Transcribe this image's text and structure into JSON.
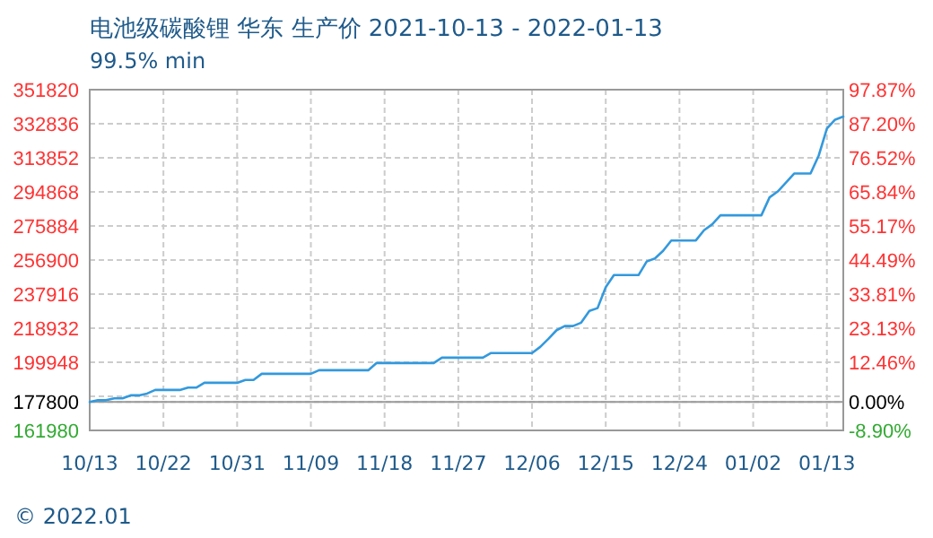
{
  "chart_data": {
    "type": "line",
    "title": "电池级碳酸锂 华东 生产价 2021-10-13 - 2022-01-13",
    "subtitle": "99.5% min",
    "x": [
      "2021-10-13",
      "2021-10-14",
      "2021-10-15",
      "2021-10-16",
      "2021-10-17",
      "2021-10-18",
      "2021-10-19",
      "2021-10-20",
      "2021-10-21",
      "2021-10-22",
      "2021-10-23",
      "2021-10-24",
      "2021-10-25",
      "2021-10-26",
      "2021-10-27",
      "2021-10-28",
      "2021-10-29",
      "2021-10-30",
      "2021-10-31",
      "2021-11-01",
      "2021-11-02",
      "2021-11-03",
      "2021-11-04",
      "2021-11-05",
      "2021-11-06",
      "2021-11-07",
      "2021-11-08",
      "2021-11-09",
      "2021-11-10",
      "2021-11-11",
      "2021-11-12",
      "2021-11-13",
      "2021-11-14",
      "2021-11-15",
      "2021-11-16",
      "2021-11-17",
      "2021-11-18",
      "2021-11-19",
      "2021-11-20",
      "2021-11-21",
      "2021-11-22",
      "2021-11-23",
      "2021-11-24",
      "2021-11-25",
      "2021-11-26",
      "2021-11-27",
      "2021-11-28",
      "2021-11-29",
      "2021-11-30",
      "2021-12-01",
      "2021-12-02",
      "2021-12-03",
      "2021-12-04",
      "2021-12-05",
      "2021-12-06",
      "2021-12-07",
      "2021-12-08",
      "2021-12-09",
      "2021-12-10",
      "2021-12-11",
      "2021-12-12",
      "2021-12-13",
      "2021-12-14",
      "2021-12-15",
      "2021-12-16",
      "2021-12-17",
      "2021-12-18",
      "2021-12-19",
      "2021-12-20",
      "2021-12-21",
      "2021-12-22",
      "2021-12-23",
      "2021-12-24",
      "2021-12-25",
      "2021-12-26",
      "2021-12-27",
      "2021-12-28",
      "2021-12-29",
      "2021-12-30",
      "2021-12-31",
      "2022-01-01",
      "2022-01-02",
      "2022-01-03",
      "2022-01-04",
      "2022-01-05",
      "2022-01-06",
      "2022-01-07",
      "2022-01-08",
      "2022-01-09",
      "2022-01-10",
      "2022-01-11",
      "2022-01-12",
      "2022-01-13"
    ],
    "series": [
      {
        "color": "#3399dd",
        "values": [
          177800,
          178800,
          178800,
          179800,
          179800,
          181500,
          181500,
          182500,
          184500,
          184500,
          184500,
          184500,
          185800,
          185800,
          188500,
          188500,
          188500,
          188500,
          188500,
          190100,
          190100,
          193500,
          193500,
          193500,
          193500,
          193500,
          193500,
          193500,
          195500,
          195500,
          195500,
          195500,
          195500,
          195500,
          195500,
          199500,
          199500,
          199500,
          199500,
          199500,
          199500,
          199500,
          199500,
          202500,
          202500,
          202500,
          202500,
          202500,
          202500,
          205100,
          205100,
          205100,
          205100,
          205100,
          205100,
          208500,
          213000,
          217800,
          220100,
          220100,
          222000,
          228500,
          230100,
          241800,
          248500,
          248500,
          248500,
          248500,
          256100,
          257800,
          262000,
          267800,
          267800,
          267800,
          267800,
          273500,
          276800,
          281800,
          281800,
          281800,
          281800,
          281800,
          281800,
          291800,
          295100,
          300000,
          305100,
          305100,
          305100,
          315100,
          330100,
          335100,
          336800
        ]
      }
    ],
    "xlim": [
      "2021-10-13",
      "2022-01-13"
    ],
    "xticks": [
      {
        "value": "2021-10-13",
        "label": "10/13"
      },
      {
        "value": "2021-10-22",
        "label": "10/22"
      },
      {
        "value": "2021-10-31",
        "label": "10/31"
      },
      {
        "value": "2021-11-09",
        "label": "11/09"
      },
      {
        "value": "2021-11-18",
        "label": "11/18"
      },
      {
        "value": "2021-11-27",
        "label": "11/27"
      },
      {
        "value": "2021-12-06",
        "label": "12/06"
      },
      {
        "value": "2021-12-15",
        "label": "12/15"
      },
      {
        "value": "2021-12-24",
        "label": "12/24"
      },
      {
        "value": "2022-01-02",
        "label": "01/02"
      },
      {
        "value": "2022-01-11",
        "label": "01/13"
      }
    ],
    "ylim": [
      161980,
      351820
    ],
    "yticks": [
      161980,
      177800,
      {
        "value": 180964,
        "label": null
      },
      199948,
      218932,
      237916,
      256900,
      275884,
      294868,
      313852,
      332836,
      351820
    ],
    "y2lim": [
      -8.9,
      97.87
    ],
    "y2ticks": [
      {
        "value": -8.9,
        "label": "-8.90%"
      },
      {
        "value": 0,
        "label": "0.00%"
      },
      {
        "value": 12.46,
        "label": "12.46%"
      },
      {
        "value": 23.13,
        "label": "23.13%"
      },
      {
        "value": 33.81,
        "label": "33.81%"
      },
      {
        "value": 44.49,
        "label": "44.49%"
      },
      {
        "value": 55.17,
        "label": "55.17%"
      },
      {
        "value": 65.84,
        "label": "65.84%"
      },
      {
        "value": 76.52,
        "label": "76.52%"
      },
      {
        "value": 87.2,
        "label": "87.20%"
      },
      {
        "value": 97.87,
        "label": "97.87%"
      }
    ],
    "ref_lines": [
      {
        "axis": "y2",
        "value": 0,
        "color": "#999999"
      }
    ],
    "annotations": [
      "© 2022.01"
    ],
    "grid": true,
    "marker": "none",
    "line_style": "solid"
  }
}
